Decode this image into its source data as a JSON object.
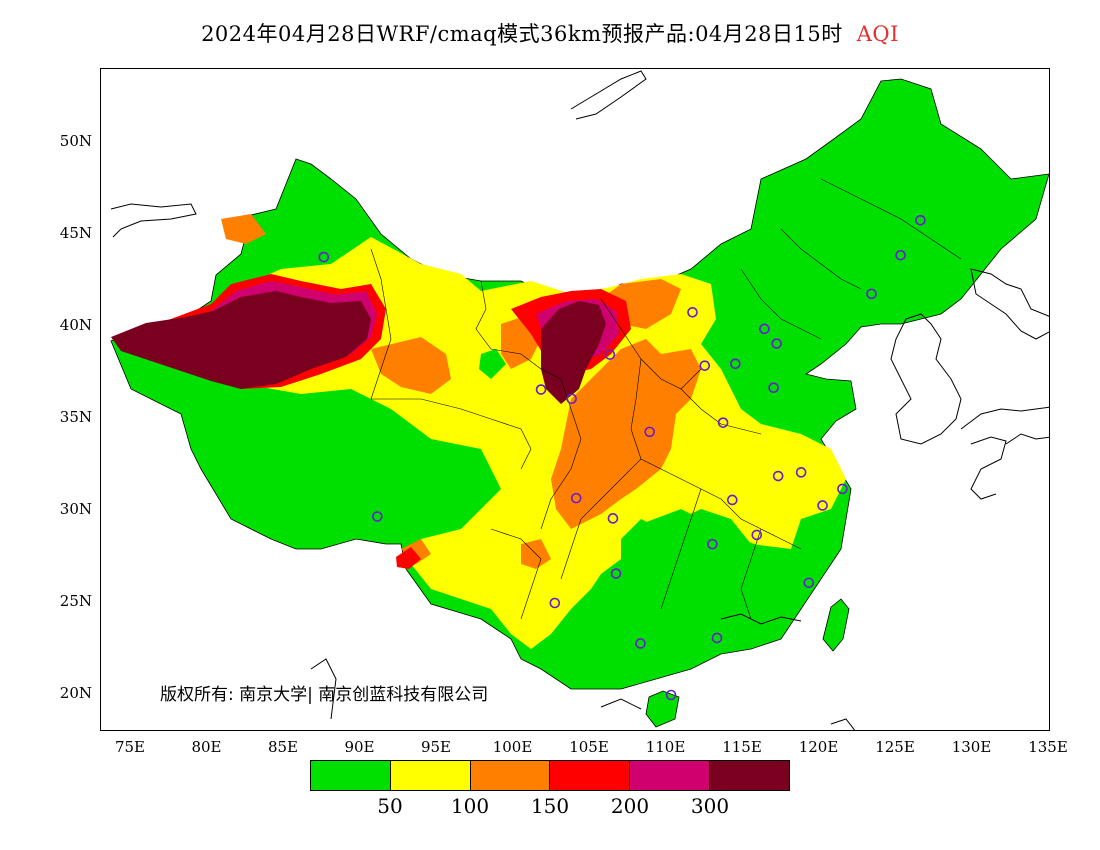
{
  "title": {
    "main": "2024年04月28日WRF/cmaq模式36km预报产品:04月28日15时",
    "variable": "AQI",
    "variable_color": "#e03030"
  },
  "axes": {
    "lat_ticks": [
      "20N",
      "25N",
      "30N",
      "35N",
      "40N",
      "45N",
      "50N"
    ],
    "lon_ticks": [
      "75E",
      "80E",
      "85E",
      "90E",
      "95E",
      "100E",
      "105E",
      "110E",
      "115E",
      "120E",
      "125E",
      "130E",
      "135E"
    ]
  },
  "copyright": "版权所有: 南京大学| 南京创蓝科技有限公司",
  "legend": {
    "colors": [
      "#00e000",
      "#ffff00",
      "#ff8000",
      "#ff0000",
      "#d0006e",
      "#7a0020"
    ],
    "labels": [
      "50",
      "100",
      "150",
      "200",
      "300"
    ]
  },
  "stations": [
    {
      "lon": 87.6,
      "lat": 43.8
    },
    {
      "lon": 91.1,
      "lat": 29.7
    },
    {
      "lon": 101.8,
      "lat": 36.6
    },
    {
      "lon": 103.8,
      "lat": 36.1
    },
    {
      "lon": 106.3,
      "lat": 38.5
    },
    {
      "lon": 111.7,
      "lat": 40.8
    },
    {
      "lon": 112.5,
      "lat": 37.9
    },
    {
      "lon": 114.5,
      "lat": 38.0
    },
    {
      "lon": 116.4,
      "lat": 39.9
    },
    {
      "lon": 117.2,
      "lat": 39.1
    },
    {
      "lon": 117.0,
      "lat": 36.7
    },
    {
      "lon": 113.7,
      "lat": 34.8
    },
    {
      "lon": 108.9,
      "lat": 34.3
    },
    {
      "lon": 104.1,
      "lat": 30.7
    },
    {
      "lon": 106.5,
      "lat": 29.6
    },
    {
      "lon": 106.7,
      "lat": 26.6
    },
    {
      "lon": 102.7,
      "lat": 25.0
    },
    {
      "lon": 108.3,
      "lat": 22.8
    },
    {
      "lon": 110.3,
      "lat": 20.0
    },
    {
      "lon": 113.3,
      "lat": 23.1
    },
    {
      "lon": 113.0,
      "lat": 28.2
    },
    {
      "lon": 114.3,
      "lat": 30.6
    },
    {
      "lon": 115.9,
      "lat": 28.7
    },
    {
      "lon": 117.3,
      "lat": 31.9
    },
    {
      "lon": 118.8,
      "lat": 32.1
    },
    {
      "lon": 120.2,
      "lat": 30.3
    },
    {
      "lon": 121.5,
      "lat": 31.2
    },
    {
      "lon": 119.3,
      "lat": 26.1
    },
    {
      "lon": 123.4,
      "lat": 41.8
    },
    {
      "lon": 125.3,
      "lat": 43.9
    },
    {
      "lon": 126.6,
      "lat": 45.8
    }
  ]
}
